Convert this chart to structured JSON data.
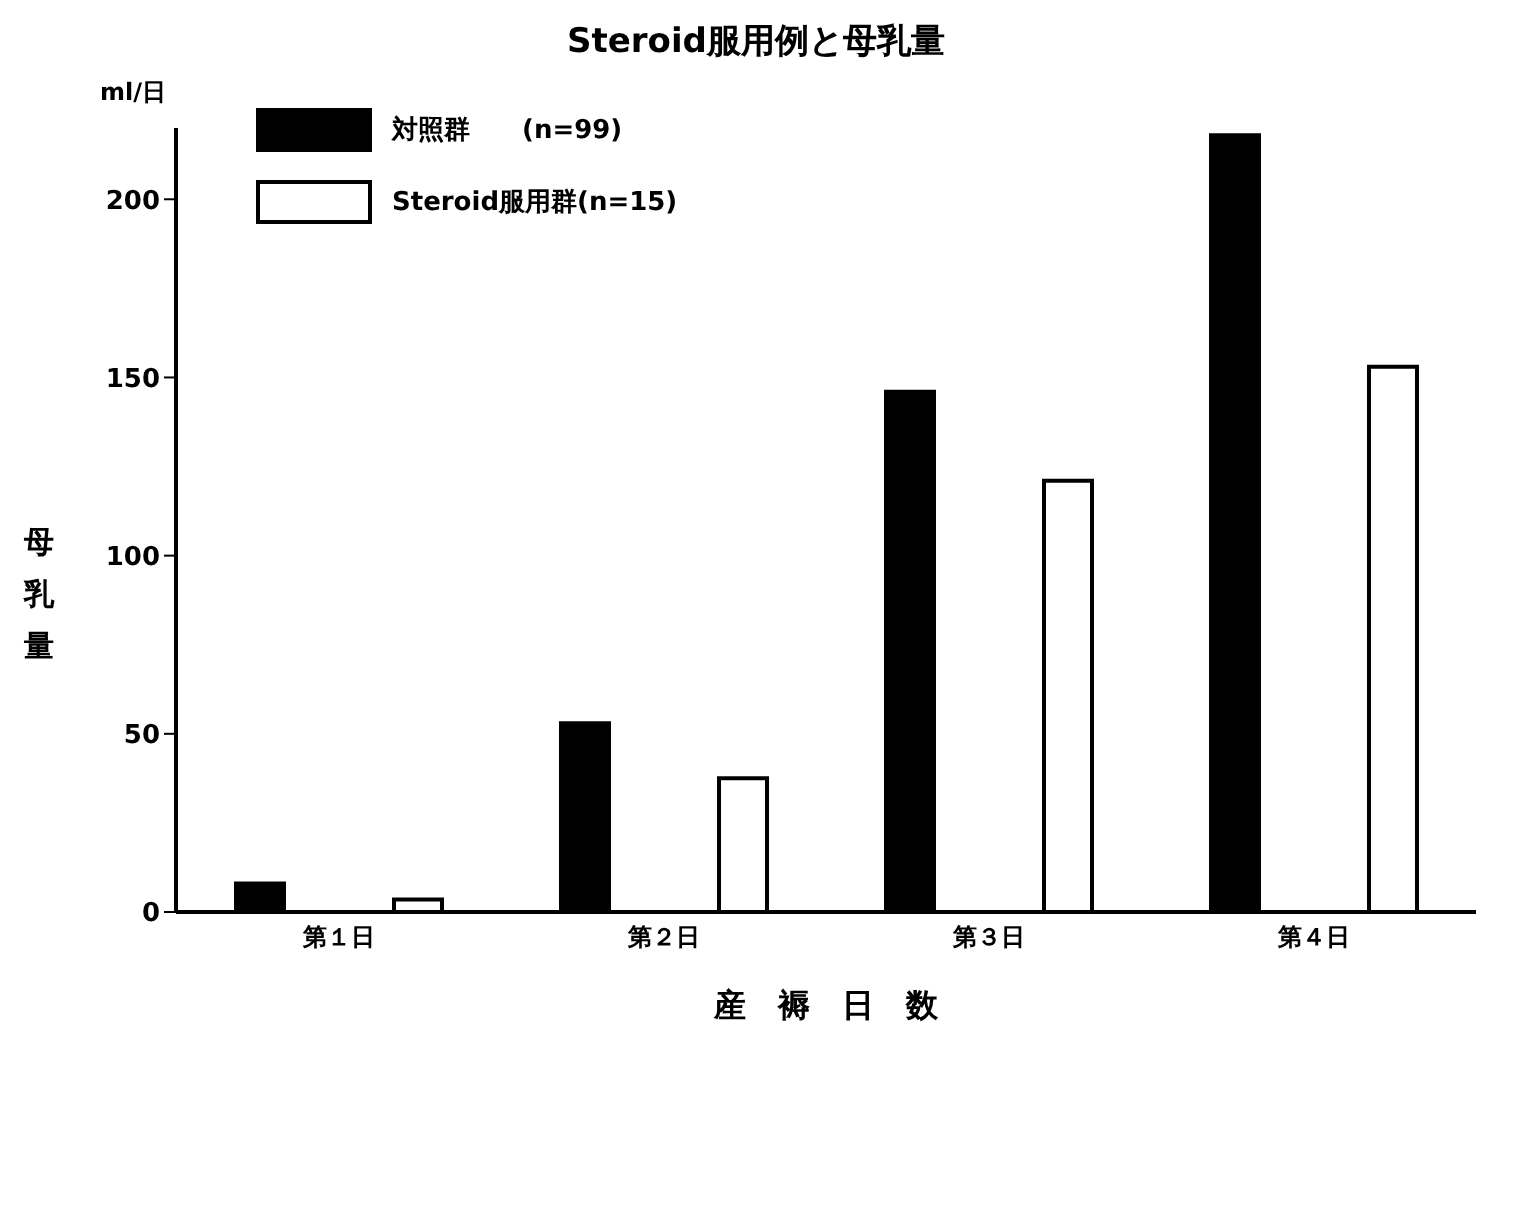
{
  "chart_data": {
    "type": "bar",
    "title": "Steroid服用例と母乳量",
    "xlabel": "産　褥　日　数",
    "ylabel": "母乳量",
    "annotations": [
      "ml/日"
    ],
    "categories": [
      "第１日",
      "第２日",
      "第３日",
      "第４日"
    ],
    "series": [
      {
        "name": "対照群　　(n=99)",
        "color": "#000000",
        "values": [
          8,
          53,
          146,
          218
        ]
      },
      {
        "name": "Steroid服用群(n=15)",
        "color": "#ffffff",
        "values": [
          3.5,
          37.5,
          121,
          153
        ]
      }
    ],
    "ylim": [
      0,
      220
    ],
    "yticks": [
      0,
      50,
      100,
      150,
      200
    ],
    "grid": false,
    "legend": "top left"
  }
}
